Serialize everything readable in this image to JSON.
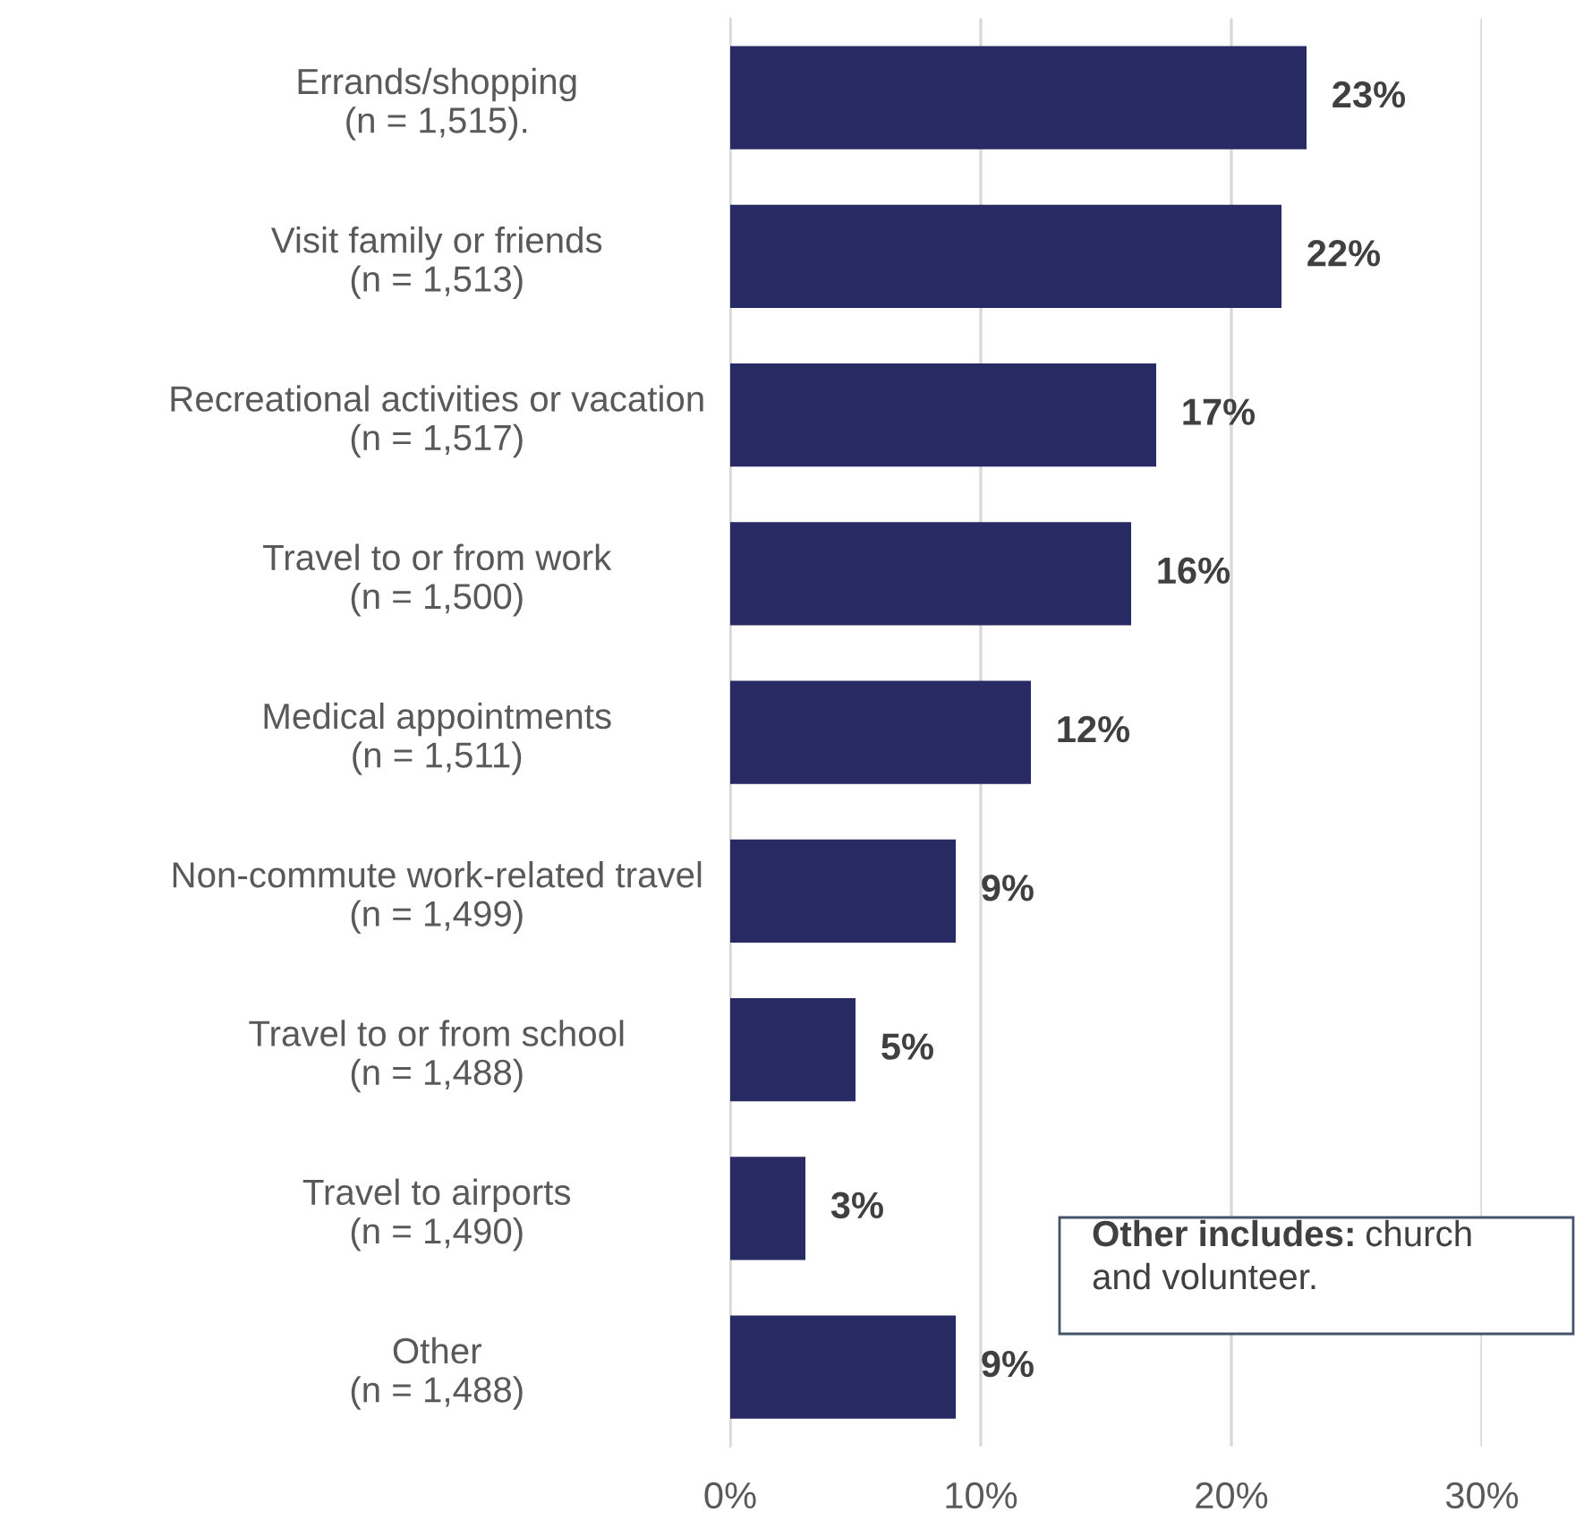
{
  "chart_data": {
    "type": "bar",
    "orientation": "horizontal",
    "categories": [
      "Errands/shopping\n(n = 1,515).",
      "Visit family or friends\n(n = 1,513)",
      "Recreational activities or vacation\n(n = 1,517)",
      "Travel to or from work\n(n = 1,500)",
      "Medical appointments\n(n = 1,511)",
      "Non-commute work-related travel\n(n = 1,499)",
      "Travel to or from school\n(n = 1,488)",
      "Travel to airports\n(n = 1,490)",
      "Other\n(n = 1,488)"
    ],
    "values": [
      23,
      22,
      17,
      16,
      12,
      9,
      5,
      3,
      9
    ],
    "value_labels": [
      "23%",
      "22%",
      "17%",
      "16%",
      "12%",
      "9%",
      "5%",
      "3%",
      "9%"
    ],
    "color": "#272a63",
    "xlim": [
      0,
      30
    ],
    "xticks": [
      {
        "value": 0,
        "label": "0%"
      },
      {
        "value": 10,
        "label": "10%"
      },
      {
        "value": 20,
        "label": "20%"
      },
      {
        "value": 30,
        "label": "30%"
      }
    ],
    "grid": "x",
    "annotations": [
      "Other includes: church and volunteer."
    ]
  }
}
